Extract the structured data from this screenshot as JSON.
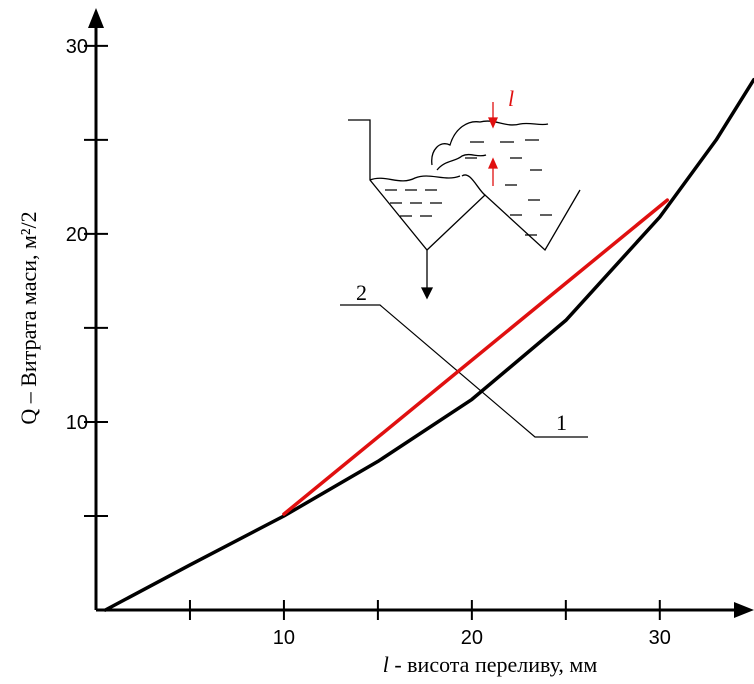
{
  "chart_data": {
    "type": "line",
    "xlabel": [
      "l",
      " - висота переливу, мм"
    ],
    "ylabel": "Q – Витрата маси, м²/2",
    "xlim": [
      0,
      34.8
    ],
    "ylim": [
      0,
      31.8
    ],
    "xticks": [
      10,
      20,
      30
    ],
    "yticks": [
      10,
      20,
      30
    ],
    "xminor_ticks": [
      5,
      15,
      25
    ],
    "yminor_ticks": [
      5,
      15,
      25
    ],
    "series": [
      {
        "color": "#000000",
        "x": [
          0.5,
          5,
          10,
          15,
          20,
          25,
          30,
          33,
          35
        ],
        "values": [
          0,
          2.4,
          5.0,
          7.9,
          11.2,
          15.4,
          20.9,
          25,
          28.2
        ]
      },
      {
        "color": "#e01010",
        "x": [
          10,
          30.4
        ],
        "values": [
          5.1,
          21.8
        ]
      }
    ],
    "annotations": [
      "1",
      "2"
    ],
    "inset_label": "l"
  }
}
